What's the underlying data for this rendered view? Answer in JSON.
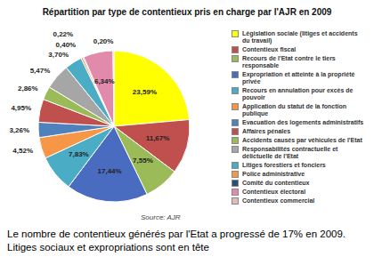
{
  "chart_data": {
    "type": "pie",
    "title": "Répartition par type de contentieux pris en charge par l'AJR en 2009",
    "categories": [
      "Législation sociale (litiges et accidents du travail)",
      "Contentieux fiscal",
      "Recours de l'Etat contre le tiers responsable",
      "Expropriation et atteinte à la propriété privée",
      "Recours en annulation pour excès de pouvoir",
      "Application du statut de la fonction publique",
      "Evacuation des logements administratifs",
      "Affaires pénales",
      "Accidents causés par véhicules de l'Etat",
      "Responsabilités contractuelle et délictuelle de l'Etat",
      "Litiges forestiers et fonciers",
      "Police administrative",
      "Comité du contentieux",
      "Contentieux électoral",
      "Contentieux commercial"
    ],
    "values": [
      23.59,
      11.67,
      7.55,
      17.44,
      7.83,
      4.52,
      3.26,
      4.95,
      2.86,
      5.47,
      3.7,
      0.4,
      0.22,
      6.34,
      0.2
    ],
    "value_labels": [
      "23,59%",
      "11,67%",
      "7,55%",
      "17,44%",
      "7,83%",
      "4,52%",
      "3,26%",
      "4,95%",
      "2,86%",
      "5,47%",
      "3,70%",
      "0,40%",
      "0,22%",
      "6,34%",
      "0,20%"
    ],
    "colors": [
      "#ffff00",
      "#c0504d",
      "#9bbb59",
      "#4a6cc0",
      "#4bacc6",
      "#f79646",
      "#4f81bd",
      "#c0504d",
      "#9bbb59",
      "#a6a6a6",
      "#4bacc6",
      "#f79646",
      "#2c4d75",
      "#e28aab",
      "#e6b9b8"
    ],
    "data_labels": true,
    "legend": "right",
    "source": "Source: AJR",
    "caption": "Le nombre de contentieux générés par l'Etat a progressé de 17% en 2009. Litiges sociaux et expropriations sont en tête"
  }
}
